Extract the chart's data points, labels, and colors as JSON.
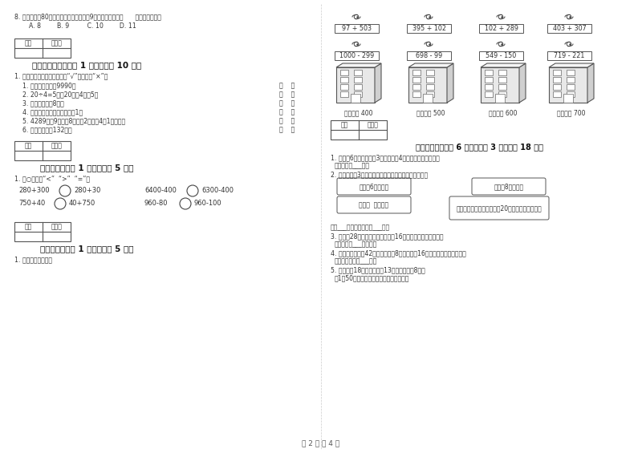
{
  "title": "第 2 页 共 4 页",
  "bg_color": "#ffffff",
  "border_color": "#000000",
  "text_color": "#333333",
  "left_column": {
    "q8_text": "8. 小华看一本80页的故事书，如果每天看9页，那么至少要（      ）天才能看完。",
    "q8_options": "A. 8        B. 9         C. 10        D. 11",
    "section5_header": "五、判断对与错（共 1 大题，共计 10 分）",
    "section5_intro": "1. 我会判断，对的在括号里打“√”，错的打“×”。",
    "section5_items": [
      "1. 最大的四位数是9990。",
      "2. 20÷4=5读作20除以4等于5。",
      "3. 课桌的高度是8米。",
      "4. 两个同样大的数相除，商是1。",
      "5. 4289是〙9个千、8个百、2个十和4个1组成的。",
      "6. 小红的身高是132米。"
    ],
    "section6_header": "六、比一比（共 1 大题，共计 5 分）",
    "section6_intro": "1. 在○里填上“<”  “>”  “=”。",
    "section6_r1_a": "280+300",
    "section6_r1_b": "280+30",
    "section6_r1_c": "6400-400",
    "section6_r1_d": "6300-400",
    "section6_r2_a": "750+40",
    "section6_r2_b": "40+750",
    "section6_r2_c": "960-80",
    "section6_r2_d": "960-100",
    "section7_header": "七、连一连（共 1 大题，共计 5 分）",
    "section7_intro": "1. 估一估，连一连。"
  },
  "right_column": {
    "bird_expressions_row1": [
      "97 + 503",
      "395 + 102",
      "102 + 289",
      "403 + 307"
    ],
    "bird_expressions_row2": [
      "1000 - 299",
      "698 - 99",
      "549 - 150",
      "719 - 221"
    ],
    "building_labels": [
      "得数接近 400",
      "得数大约 500",
      "得数接近 600",
      "得数大约 700"
    ],
    "section8_header": "八、解决问题（共 6 小题，每题 3 分，共计 18 分）",
    "section8_q1": "1. 小明有6套邮片，每夹3张，又买来4张，问现在有多少张？",
    "section8_q1_ans": "答：现在有___张。",
    "section8_q2": "2. 青蛙妈妈和3只小青蛙比，谁捉的害虫多？多多少只？",
    "frog_bubble1": "我捉的6只害虫。",
    "frog_bubble2": "我捉的8只害虫。",
    "frog_bubble3": "我捉了  只害虫。",
    "frog_bubble4": "孩子们，加油！我已经捉了20只了，我们来比赛。",
    "section8_q2_ans": "答：___捉的害虫多，多___只。",
    "section8_q3": "3. 小青朦28张照片，粗片比照片多16张，小青有多少张粗片？",
    "section8_q3_ans": "答：小青有___张粗片。",
    "section8_q4": "4. 一辆空调车上有42人，中途下车8人，又上来16人，现在车上有多少人？",
    "section8_q4_ans": "答：现在车上有___人。",
    "section8_q5": "5. 玩具汽车18元，玩具飞机13元，玩具轮表8元。",
    "section8_q5_sub": "（1）50元能买哪两件玩具，还剩多少錢？"
  },
  "score_box_label1": "得分",
  "score_box_label2": "评卷人"
}
